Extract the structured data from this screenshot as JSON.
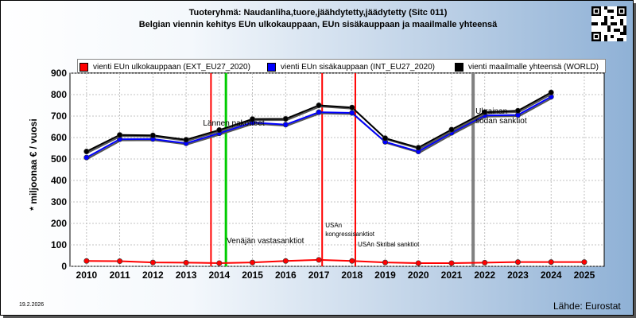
{
  "header": {
    "title": "Tuoteryhmä: Naudanliha,tuore,jäähdytetty,jäädytetty (Sitc 011)",
    "subtitle": "Belgian viennin kehitys EUn ulkokauppaan, EUn sisäkauppaan ja maailmalle yhteensä"
  },
  "legend": [
    {
      "label": "vienti EUn ulkokauppaan (EXT_EU27_2020)",
      "color": "#ff0000"
    },
    {
      "label": "vienti EUn sisäkauppaan (INT_EU27_2020)",
      "color": "#0000ff"
    },
    {
      "label": "vienti maailmalle yhteensä (WORLD)",
      "color": "#000000"
    }
  ],
  "footer": {
    "date": "19.2.2026",
    "source": "Lähde: Eurostat"
  },
  "chart_data": {
    "type": "line",
    "title": "Tuoteryhmä: Naudanliha,tuore,jäähdytetty,jäädytetty (Sitc 011)",
    "subtitle": "Belgian viennin kehitys EUn ulkokauppaan, EUn sisäkauppaan ja maailmalle yhteensä",
    "xlabel": "",
    "ylabel": "* miljoonaa € / vuosi",
    "ylim": [
      0,
      900
    ],
    "yticks": [
      0,
      100,
      200,
      300,
      400,
      500,
      600,
      700,
      800,
      900
    ],
    "xticks": [
      "2010",
      "2011",
      "2012",
      "2013",
      "2014",
      "2015",
      "2016",
      "2017",
      "2018",
      "2019",
      "2020",
      "2021",
      "2022",
      "2023",
      "2024",
      "2025"
    ],
    "grid": true,
    "legend_position": "top",
    "series": [
      {
        "name": "vienti EUn ulkokauppaan (EXT_EU27_2020)",
        "color": "#ff0000",
        "x": [
          2010,
          2011,
          2012,
          2013,
          2014,
          2015,
          2016,
          2017,
          2018,
          2019,
          2020,
          2021,
          2022,
          2023,
          2024,
          2025
        ],
        "values": [
          25,
          24,
          18,
          17,
          15,
          18,
          25,
          30,
          25,
          18,
          15,
          15,
          17,
          20,
          20,
          20
        ]
      },
      {
        "name": "vienti EUn sisäkauppaan (INT_EU27_2020)",
        "color": "#0000ff",
        "x": [
          2010,
          2011,
          2012,
          2013,
          2014,
          2015,
          2016,
          2017,
          2018,
          2019,
          2020,
          2021,
          2022,
          2023,
          2024
        ],
        "values": [
          507,
          592,
          593,
          573,
          620,
          670,
          660,
          718,
          715,
          580,
          535,
          622,
          703,
          705,
          790
        ]
      },
      {
        "name": "vienti maailmalle yhteensä (WORLD)",
        "color": "#000000",
        "x": [
          2010,
          2011,
          2012,
          2013,
          2014,
          2015,
          2016,
          2017,
          2018,
          2019,
          2020,
          2021,
          2022,
          2023,
          2024
        ],
        "values": [
          535,
          612,
          610,
          590,
          635,
          686,
          687,
          750,
          740,
          597,
          553,
          637,
          718,
          725,
          810
        ]
      }
    ],
    "events": [
      {
        "x": 2013.75,
        "label": "Lännen pakotteet",
        "color": "#ff0000"
      },
      {
        "x": 2014.2,
        "label": "Venäjän vastasanktiot",
        "color": "#00cc00"
      },
      {
        "x": 2017.1,
        "label": "USAn kongressisanktiot",
        "color": "#ff0000"
      },
      {
        "x": 2018.1,
        "label": "USAn Skribal sanktiot",
        "color": "#ff0000"
      },
      {
        "x": 2021.65,
        "label": "Ukrainan sodan sanktiot",
        "color": "#808080"
      }
    ]
  }
}
